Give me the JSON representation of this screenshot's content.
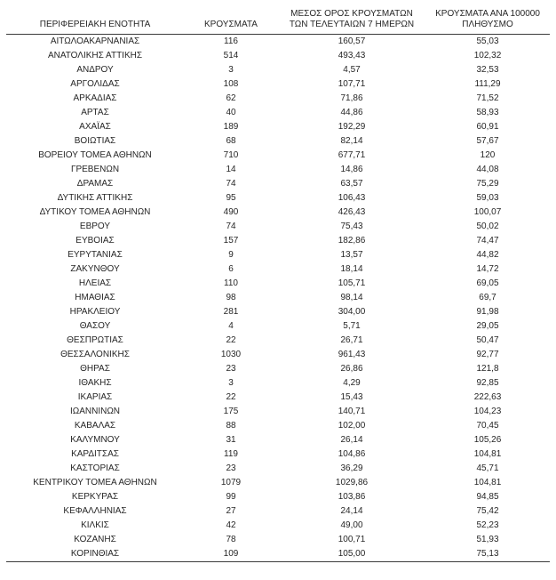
{
  "chart_data": {
    "type": "table",
    "title": "",
    "columns": [
      "ΠΕΡΙΦΕΡΕΙΑΚΗ ΕΝΟΤΗΤΑ",
      "ΚΡΟΥΣΜΑΤΑ",
      "ΜΕΣΟΣ ΟΡΟΣ ΚΡΟΥΣΜΑΤΩΝ\nΤΩΝ ΤΕΛΕΥΤΑΙΩΝ 7 ΗΜΕΡΩΝ",
      "ΚΡΟΥΣΜΑΤΑ ΑΝΑ 100000\nΠΛΗΘΥΣΜΟ"
    ],
    "rows": [
      [
        "ΑΙΤΩΛΟΑΚΑΡΝΑΝΙΑΣ",
        "116",
        "160,57",
        "55,03"
      ],
      [
        "ΑΝΑΤΟΛΙΚΗΣ ΑΤΤΙΚΗΣ",
        "514",
        "493,43",
        "102,32"
      ],
      [
        "ΑΝΔΡΟΥ",
        "3",
        "4,57",
        "32,53"
      ],
      [
        "ΑΡΓΟΛΙΔΑΣ",
        "108",
        "107,71",
        "111,29"
      ],
      [
        "ΑΡΚΑΔΙΑΣ",
        "62",
        "71,86",
        "71,52"
      ],
      [
        "ΑΡΤΑΣ",
        "40",
        "44,86",
        "58,93"
      ],
      [
        "ΑΧΑΪΑΣ",
        "189",
        "192,29",
        "60,91"
      ],
      [
        "ΒΟΙΩΤΙΑΣ",
        "68",
        "82,14",
        "57,67"
      ],
      [
        "ΒΟΡΕΙΟΥ ΤΟΜΕΑ ΑΘΗΝΩΝ",
        "710",
        "677,71",
        "120"
      ],
      [
        "ΓΡΕΒΕΝΩΝ",
        "14",
        "14,86",
        "44,08"
      ],
      [
        "ΔΡΑΜΑΣ",
        "74",
        "63,57",
        "75,29"
      ],
      [
        "ΔΥΤΙΚΗΣ ΑΤΤΙΚΗΣ",
        "95",
        "106,43",
        "59,03"
      ],
      [
        "ΔΥΤΙΚΟΥ ΤΟΜΕΑ ΑΘΗΝΩΝ",
        "490",
        "426,43",
        "100,07"
      ],
      [
        "ΕΒΡΟΥ",
        "74",
        "75,43",
        "50,02"
      ],
      [
        "ΕΥΒΟΙΑΣ",
        "157",
        "182,86",
        "74,47"
      ],
      [
        "ΕΥΡΥΤΑΝΙΑΣ",
        "9",
        "13,57",
        "44,82"
      ],
      [
        "ΖΑΚΥΝΘΟΥ",
        "6",
        "18,14",
        "14,72"
      ],
      [
        "ΗΛΕΙΑΣ",
        "110",
        "105,71",
        "69,05"
      ],
      [
        "ΗΜΑΘΙΑΣ",
        "98",
        "98,14",
        "69,7"
      ],
      [
        "ΗΡΑΚΛΕΙΟΥ",
        "281",
        "304,00",
        "91,98"
      ],
      [
        "ΘΑΣΟΥ",
        "4",
        "5,71",
        "29,05"
      ],
      [
        "ΘΕΣΠΡΩΤΙΑΣ",
        "22",
        "26,71",
        "50,47"
      ],
      [
        "ΘΕΣΣΑΛΟΝΙΚΗΣ",
        "1030",
        "961,43",
        "92,77"
      ],
      [
        "ΘΗΡΑΣ",
        "23",
        "26,86",
        "121,8"
      ],
      [
        "ΙΘΑΚΗΣ",
        "3",
        "4,29",
        "92,85"
      ],
      [
        "ΙΚΑΡΙΑΣ",
        "22",
        "15,43",
        "222,63"
      ],
      [
        "ΙΩΑΝΝΙΝΩΝ",
        "175",
        "140,71",
        "104,23"
      ],
      [
        "ΚΑΒΑΛΑΣ",
        "88",
        "102,00",
        "70,45"
      ],
      [
        "ΚΑΛΥΜΝΟΥ",
        "31",
        "26,14",
        "105,26"
      ],
      [
        "ΚΑΡΔΙΤΣΑΣ",
        "119",
        "104,86",
        "104,81"
      ],
      [
        "ΚΑΣΤΟΡΙΑΣ",
        "23",
        "36,29",
        "45,71"
      ],
      [
        "ΚΕΝΤΡΙΚΟΥ ΤΟΜΕΑ ΑΘΗΝΩΝ",
        "1079",
        "1029,86",
        "104,81"
      ],
      [
        "ΚΕΡΚΥΡΑΣ",
        "99",
        "103,86",
        "94,85"
      ],
      [
        "ΚΕΦΑΛΛΗΝΙΑΣ",
        "27",
        "24,14",
        "75,42"
      ],
      [
        "ΚΙΛΚΙΣ",
        "42",
        "49,00",
        "52,23"
      ],
      [
        "ΚΟΖΑΝΗΣ",
        "78",
        "100,71",
        "51,93"
      ],
      [
        "ΚΟΡΙΝΘΙΑΣ",
        "109",
        "105,00",
        "75,13"
      ]
    ],
    "layout": {
      "grid": false,
      "header_rule": true,
      "bottom_rule": true,
      "text_color": "#262626",
      "rule_color": "#3a3a3a",
      "background": "#ffffff"
    }
  }
}
